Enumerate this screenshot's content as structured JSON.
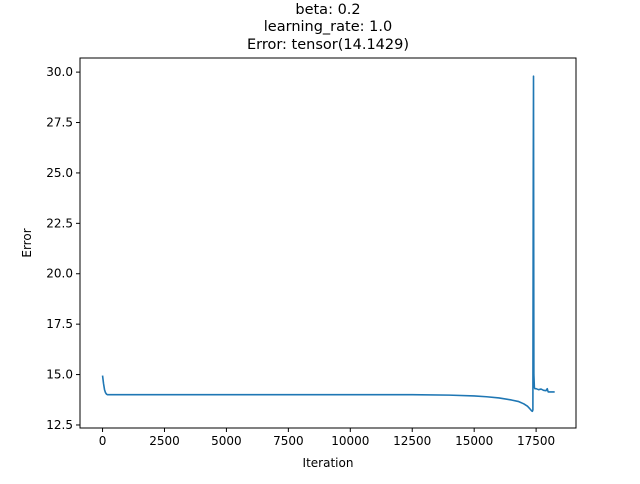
{
  "chart_data": {
    "type": "line",
    "title_lines": [
      "beta: 0.2",
      "learning_rate: 1.0",
      "Error: tensor(14.1429)"
    ],
    "xlabel": "Iteration",
    "ylabel": "Error",
    "xlim": [
      -910,
      19110
    ],
    "ylim": [
      12.35,
      30.7
    ],
    "x_ticks": [
      0,
      2500,
      5000,
      7500,
      10000,
      12500,
      15000,
      17500
    ],
    "x_tick_labels": [
      "0",
      "2500",
      "5000",
      "7500",
      "10000",
      "12500",
      "15000",
      "17500"
    ],
    "y_ticks": [
      12.5,
      15.0,
      17.5,
      20.0,
      22.5,
      25.0,
      27.5,
      30.0
    ],
    "y_tick_labels": [
      "12.5",
      "15.0",
      "17.5",
      "20.0",
      "22.5",
      "25.0",
      "27.5",
      "30.0"
    ],
    "grid": false,
    "line_color": "#1f77b4",
    "series": [
      {
        "x": [
          0,
          40,
          80,
          120,
          160,
          200,
          300,
          500,
          1000,
          2500,
          5000,
          7500,
          10000,
          12500,
          14000,
          15000,
          15500,
          16000,
          16500,
          16800,
          17000,
          17150,
          17250,
          17320,
          17350,
          17370,
          17385,
          17395,
          17410,
          17430,
          17450,
          17500,
          17600,
          17700,
          17800,
          17900,
          17950,
          17970,
          17990,
          18010,
          18100,
          18250
        ],
        "y": [
          14.95,
          14.55,
          14.25,
          14.1,
          14.03,
          14.0,
          14.0,
          14.0,
          14.0,
          14.0,
          14.0,
          14.0,
          14.0,
          14.0,
          13.98,
          13.94,
          13.9,
          13.84,
          13.74,
          13.66,
          13.55,
          13.43,
          13.3,
          13.2,
          13.18,
          13.25,
          25.0,
          29.8,
          15.0,
          14.35,
          14.3,
          14.3,
          14.25,
          14.28,
          14.22,
          14.2,
          14.3,
          14.2,
          14.14,
          14.14,
          14.14,
          14.14
        ]
      }
    ]
  }
}
